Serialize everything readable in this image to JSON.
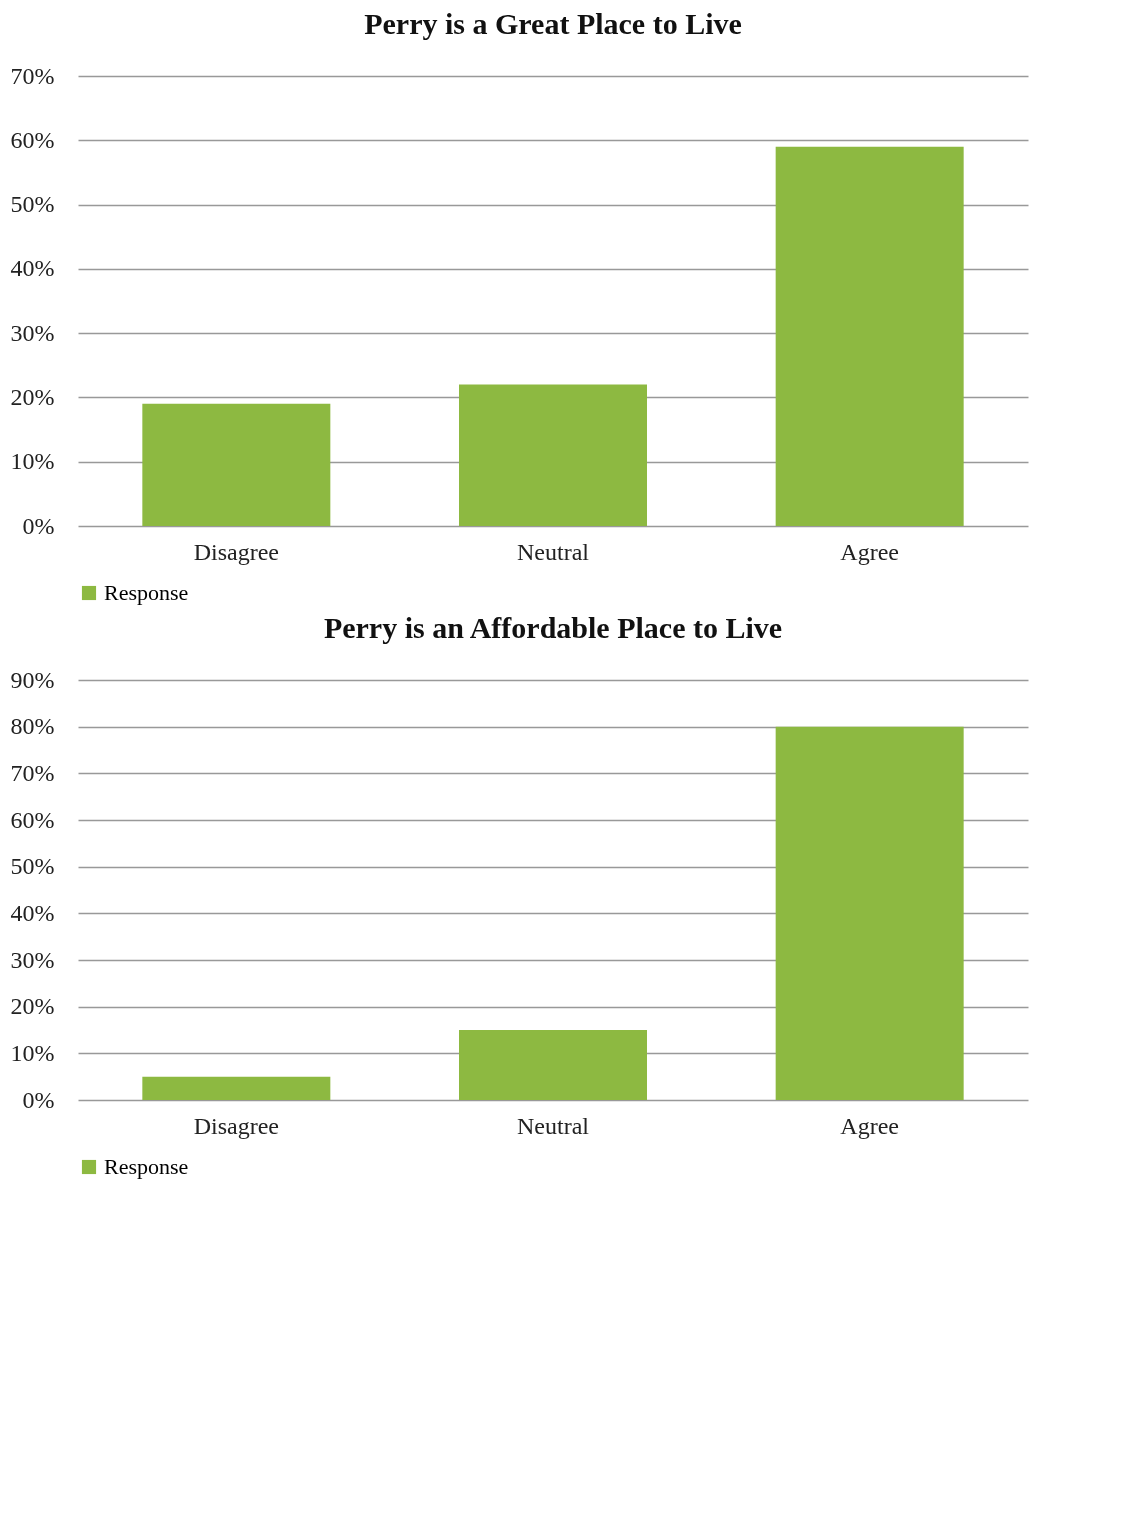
{
  "chart_data": [
    {
      "type": "bar",
      "title": "Perry is a Great Place to Live",
      "categories": [
        "Disagree",
        "Neutral",
        "Agree"
      ],
      "series": [
        {
          "name": "Response",
          "color": "#8db941",
          "values": [
            19,
            22,
            59
          ]
        }
      ],
      "ylim": [
        0,
        70
      ],
      "yticks": [
        {
          "value": 0,
          "label": "0%"
        },
        {
          "value": 10,
          "label": "10%"
        },
        {
          "value": 20,
          "label": "20%"
        },
        {
          "value": 30,
          "label": "30%"
        },
        {
          "value": 40,
          "label": "40%"
        },
        {
          "value": 50,
          "label": "50%"
        },
        {
          "value": 60,
          "label": "60%"
        },
        {
          "value": 70,
          "label": "70%"
        }
      ],
      "grid": "y",
      "legend": "bottom"
    },
    {
      "type": "bar",
      "title": "Perry is an Affordable Place to Live",
      "categories": [
        "Disagree",
        "Neutral",
        "Agree"
      ],
      "series": [
        {
          "name": "Response",
          "color": "#8db941",
          "values": [
            5,
            15,
            80
          ]
        }
      ],
      "ylim": [
        0,
        90
      ],
      "yticks": [
        {
          "value": 0,
          "label": "0%"
        },
        {
          "value": 10,
          "label": "10%"
        },
        {
          "value": 20,
          "label": "20%"
        },
        {
          "value": 30,
          "label": "30%"
        },
        {
          "value": 40,
          "label": "40%"
        },
        {
          "value": 50,
          "label": "50%"
        },
        {
          "value": 60,
          "label": "60%"
        },
        {
          "value": 70,
          "label": "70%"
        },
        {
          "value": 80,
          "label": "80%"
        },
        {
          "value": 90,
          "label": "90%"
        }
      ],
      "grid": "y",
      "legend": "bottom"
    }
  ]
}
